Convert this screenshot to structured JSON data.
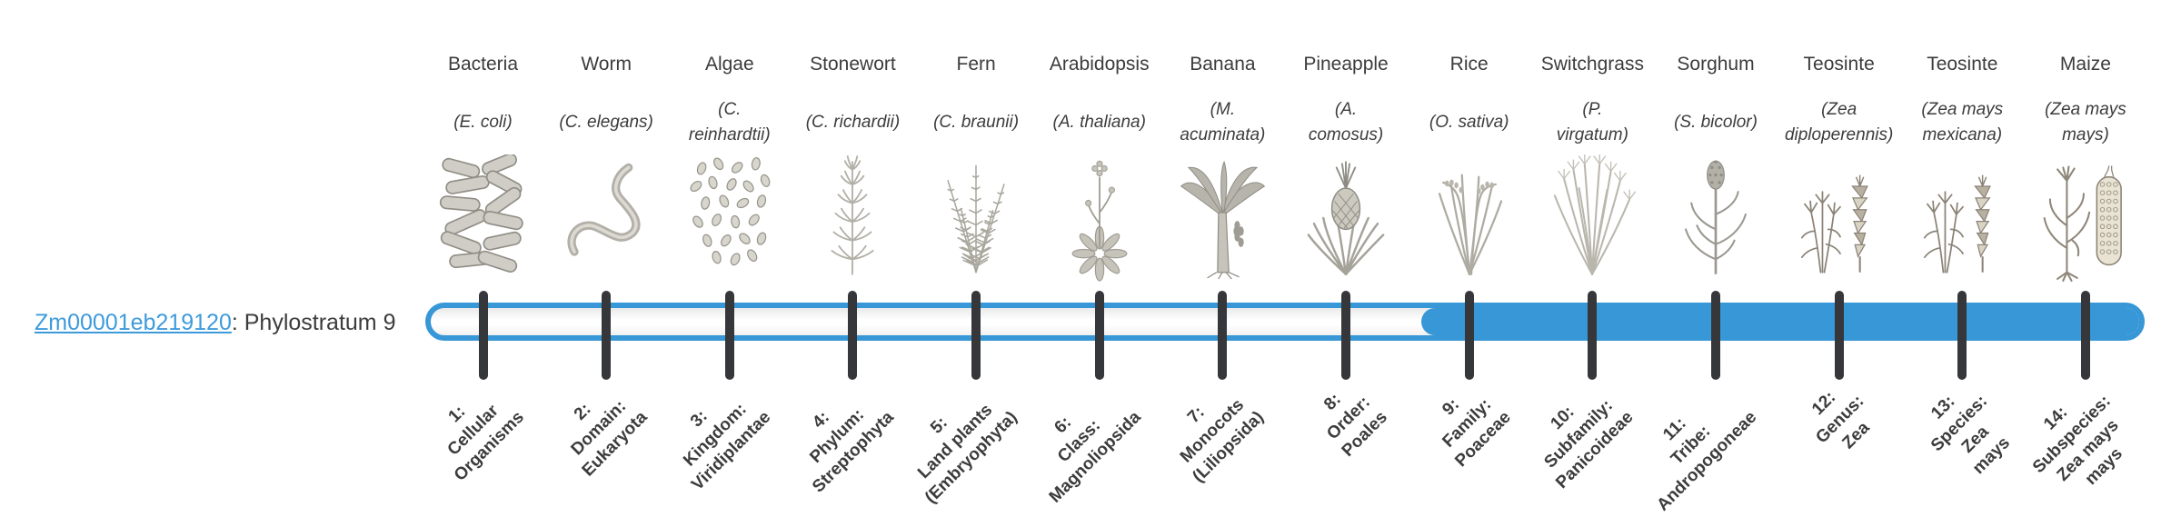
{
  "gene_label": {
    "link_text": "Zm00001eb219120",
    "rest_text": ": Phylostratum 9"
  },
  "bar": {
    "highlighted_phylostratum": 9,
    "total_phylostrata": 14
  },
  "colors": {
    "accent_blue": "#3797d7",
    "link_blue": "#3e9bdb",
    "tick_dark": "#35373a",
    "text_dark": "#3c3c3c"
  },
  "phylostrata": [
    {
      "number": 1,
      "organism": "Bacteria",
      "species_lines": [
        "(E. coli)"
      ],
      "stage_lines": [
        "1:",
        "Cellular",
        "Organisms"
      ],
      "icon": "bacteria-icon",
      "filled": false
    },
    {
      "number": 2,
      "organism": "Worm",
      "species_lines": [
        "(C. elegans)"
      ],
      "stage_lines": [
        "2:",
        "Domain:",
        "Eukaryota"
      ],
      "icon": "worm-icon",
      "filled": false
    },
    {
      "number": 3,
      "organism": "Algae",
      "species_lines": [
        "(C.",
        "reinhardtii)"
      ],
      "stage_lines": [
        "3:",
        "Kingdom:",
        "Viridiplantae"
      ],
      "icon": "algae-icon",
      "filled": false
    },
    {
      "number": 4,
      "organism": "Stonewort",
      "species_lines": [
        "(C. richardii)"
      ],
      "stage_lines": [
        "4:",
        "Phylum:",
        "Streptophyta"
      ],
      "icon": "stonewort-icon",
      "filled": false
    },
    {
      "number": 5,
      "organism": "Fern",
      "species_lines": [
        "(C. braunii)"
      ],
      "stage_lines": [
        "5:",
        "Land plants",
        "(Embryophyta)"
      ],
      "icon": "fern-icon",
      "filled": false
    },
    {
      "number": 6,
      "organism": "Arabidopsis",
      "species_lines": [
        "(A. thaliana)"
      ],
      "stage_lines": [
        "6:",
        "Class:",
        "Magnoliopsida"
      ],
      "icon": "arabidopsis-icon",
      "filled": false
    },
    {
      "number": 7,
      "organism": "Banana",
      "species_lines": [
        "(M.",
        "acuminata)"
      ],
      "stage_lines": [
        "7:",
        "Monocots",
        "(Liliopsida)"
      ],
      "icon": "banana-icon",
      "filled": false
    },
    {
      "number": 8,
      "organism": "Pineapple",
      "species_lines": [
        "(A.",
        "comosus)"
      ],
      "stage_lines": [
        "8:",
        "Order:",
        "Poales"
      ],
      "icon": "pineapple-icon",
      "filled": false
    },
    {
      "number": 9,
      "organism": "Rice",
      "species_lines": [
        "(O. sativa)"
      ],
      "stage_lines": [
        "9:",
        "Family:",
        "Poaceae"
      ],
      "icon": "rice-icon",
      "filled": true
    },
    {
      "number": 10,
      "organism": "Switchgrass",
      "species_lines": [
        "(P.",
        "virgatum)"
      ],
      "stage_lines": [
        "10:",
        "Subfamily:",
        "Panicoideae"
      ],
      "icon": "switchgrass-icon",
      "filled": true
    },
    {
      "number": 11,
      "organism": "Sorghum",
      "species_lines": [
        "(S. bicolor)"
      ],
      "stage_lines": [
        "11:",
        "Tribe:",
        "Andropogoneae"
      ],
      "icon": "sorghum-icon",
      "filled": true
    },
    {
      "number": 12,
      "organism": "Teosinte",
      "species_lines": [
        "(Zea",
        "diploperennis)"
      ],
      "stage_lines": [
        "12:",
        "Genus:",
        "Zea"
      ],
      "icon": "teosinte-icon",
      "filled": true
    },
    {
      "number": 13,
      "organism": "Teosinte",
      "species_lines": [
        "(Zea mays",
        "mexicana)"
      ],
      "stage_lines": [
        "13:",
        "Species:",
        "Zea",
        "mays"
      ],
      "icon": "teosinte-icon",
      "filled": true
    },
    {
      "number": 14,
      "organism": "Maize",
      "species_lines": [
        "(Zea mays",
        "mays)"
      ],
      "stage_lines": [
        "14:",
        "Subspecies:",
        "Zea mays",
        "mays"
      ],
      "icon": "maize-icon",
      "filled": true
    }
  ]
}
